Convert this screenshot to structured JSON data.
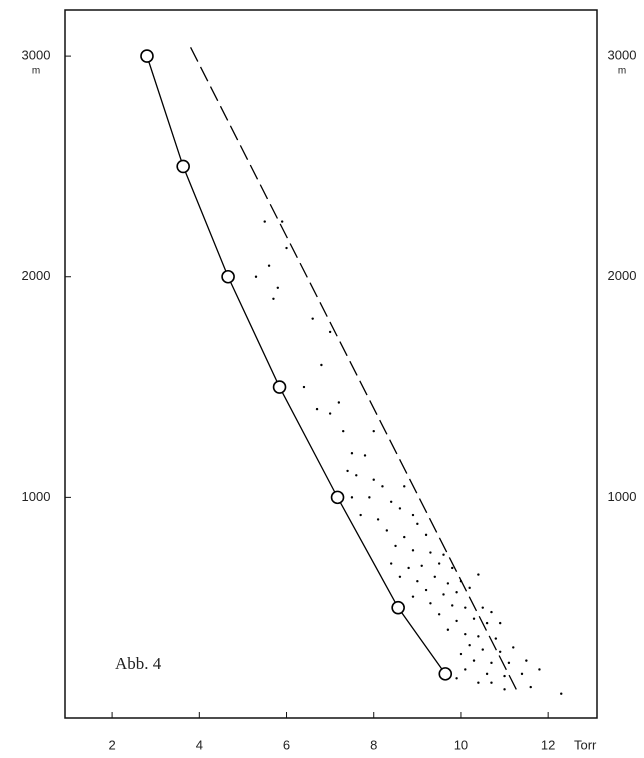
{
  "chart_data": {
    "type": "line",
    "annotation": "Abb. 4",
    "x_unit": "Torr",
    "y_unit": "m",
    "xlim": [
      0.92,
      13.12
    ],
    "ylim": [
      0,
      3209
    ],
    "xticks": [
      2,
      4,
      6,
      8,
      10,
      12
    ],
    "yticks": [
      1000,
      2000,
      3000
    ],
    "right_axis_labels": true,
    "series": [
      {
        "style": "line-circles",
        "color": "#000000",
        "x": [
          2.8,
          3.63,
          4.66,
          5.84,
          7.17,
          8.56,
          9.64
        ],
        "values": [
          3000,
          2500,
          2000,
          1500,
          1000,
          500,
          200
        ]
      },
      {
        "style": "dashed-line",
        "color": "#000000",
        "x": [
          3.8,
          11.32
        ],
        "values": [
          3040,
          110
        ]
      },
      {
        "style": "dots",
        "color": "#000000",
        "x": [
          5.5,
          5.9,
          6.0,
          5.6,
          5.8,
          5.3,
          5.7,
          6.6,
          7.0,
          6.8,
          6.4,
          7.2,
          6.7,
          7.0,
          7.3,
          8.0,
          7.5,
          7.8,
          7.4,
          7.6,
          8.0,
          8.2,
          8.7,
          7.5,
          7.9,
          8.4,
          8.6,
          7.7,
          8.1,
          8.9,
          9.0,
          8.3,
          8.7,
          9.2,
          8.5,
          8.9,
          9.3,
          9.6,
          8.4,
          8.8,
          9.1,
          9.5,
          9.8,
          8.6,
          9.0,
          9.4,
          9.7,
          10.0,
          10.4,
          9.2,
          9.6,
          9.9,
          10.2,
          8.9,
          9.3,
          9.8,
          10.1,
          10.5,
          10.7,
          9.5,
          9.9,
          10.3,
          10.6,
          10.9,
          9.7,
          10.1,
          10.4,
          10.8,
          10.2,
          10.5,
          10.9,
          11.2,
          10.0,
          10.3,
          10.7,
          11.1,
          11.5,
          10.1,
          10.6,
          11.0,
          11.4,
          11.8,
          10.4,
          11.0,
          11.6,
          12.3,
          9.9,
          10.7
        ],
        "values": [
          2250,
          2250,
          2130,
          2050,
          1950,
          2000,
          1900,
          1810,
          1750,
          1600,
          1500,
          1430,
          1400,
          1380,
          1300,
          1300,
          1200,
          1190,
          1120,
          1100,
          1080,
          1050,
          1050,
          1000,
          1000,
          980,
          950,
          920,
          900,
          920,
          880,
          850,
          820,
          830,
          780,
          760,
          750,
          740,
          700,
          680,
          690,
          700,
          680,
          640,
          620,
          640,
          610,
          620,
          650,
          580,
          560,
          570,
          590,
          550,
          520,
          510,
          500,
          500,
          480,
          470,
          440,
          450,
          430,
          430,
          400,
          380,
          370,
          360,
          330,
          310,
          300,
          320,
          290,
          260,
          250,
          250,
          260,
          220,
          200,
          190,
          200,
          220,
          160,
          130,
          140,
          110,
          180,
          160
        ]
      }
    ]
  }
}
